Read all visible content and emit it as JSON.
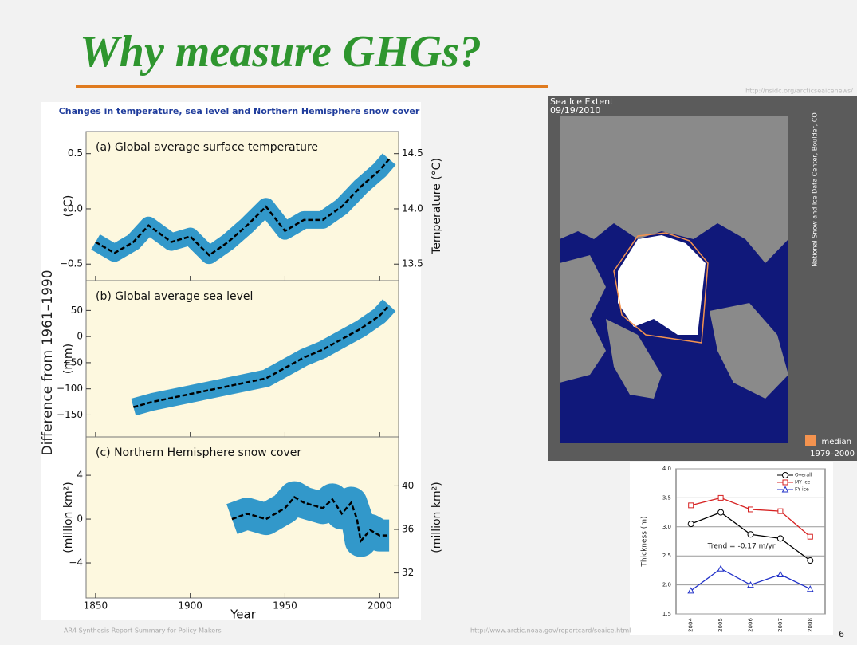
{
  "title": "Why measure GHGs?",
  "sources": {
    "left": "AR4 Synthesis Report Summary for Policy Makers",
    "middle": "http://www.arctic.noaa.gov/reportcard/seaice.html",
    "map": "http://nsidc.org/arcticseaicenews/"
  },
  "page_number": 6,
  "ipcc_figure": {
    "title": "Changes in temperature, sea level and Northern Hemisphere snow cover",
    "shared_y_label": "Difference from 1961–1990"
  },
  "map": {
    "title": "Sea Ice Extent",
    "date": "09/19/2010",
    "credit": "National Snow and Ice Data Center, Boulder, CO",
    "legend": "median",
    "legend_period": "1979–2000",
    "legend_color": "#f4934f"
  },
  "chart_data": [
    {
      "type": "line",
      "label": "(a) Global average surface temperature",
      "x": [
        1850,
        1860,
        1870,
        1878,
        1890,
        1900,
        1910,
        1920,
        1930,
        1940,
        1950,
        1960,
        1970,
        1980,
        1990,
        2000,
        2005
      ],
      "values": [
        -0.3,
        -0.4,
        -0.3,
        -0.15,
        -0.3,
        -0.25,
        -0.42,
        -0.3,
        -0.15,
        0.02,
        -0.2,
        -0.1,
        -0.1,
        0.02,
        0.2,
        0.35,
        0.45
      ],
      "color": "#000000",
      "band_color": "#1c8dc8",
      "xlim": [
        1845,
        2010
      ],
      "ylim": [
        -0.65,
        0.7
      ],
      "yticks": [
        {
          "value": -0.5,
          "label": "−0.5"
        },
        {
          "value": 0,
          "label": "0.0"
        },
        0.5
      ],
      "y2lim": [
        13.35,
        14.7
      ],
      "y2ticks": [
        13.5,
        {
          "value": 14,
          "label": "14.0"
        },
        14.5
      ],
      "y_label": "(°C)",
      "y2_label": "Temperature (°C)"
    },
    {
      "type": "line",
      "label": "(b) Global average sea level",
      "x": [
        1870,
        1880,
        1900,
        1920,
        1940,
        1950,
        1960,
        1970,
        1980,
        1990,
        2000,
        2005
      ],
      "values": [
        -135,
        -125,
        -110,
        -95,
        -80,
        -60,
        -40,
        -25,
        -5,
        15,
        40,
        60
      ],
      "color": "#000000",
      "band_color": "#1c8dc8",
      "xlim": [
        1845,
        2010
      ],
      "ylim": [
        -192,
        107
      ],
      "yticks": [
        {
          "value": -150,
          "label": "−150"
        },
        {
          "value": -100,
          "label": "−100"
        },
        {
          "value": -50,
          "label": "−50"
        },
        0,
        50
      ],
      "y_label": "(mm)"
    },
    {
      "type": "line",
      "label": "(c) Northern Hemisphere snow cover",
      "x": [
        1922,
        1930,
        1940,
        1950,
        1955,
        1960,
        1970,
        1975,
        1980,
        1985,
        1988,
        1990,
        1995,
        2000,
        2005
      ],
      "values": [
        0,
        0.5,
        0,
        1,
        2,
        1.5,
        1,
        1.8,
        0.5,
        1.5,
        0,
        -2,
        -1,
        -1.5,
        -1.5
      ],
      "color": "#000000",
      "band_color": "#1c8dc8",
      "xlim": [
        1845,
        2010
      ],
      "xticks": [
        1850,
        1900,
        1950,
        2000
      ],
      "x_label": "Year",
      "ylim": [
        -7.2,
        7.5
      ],
      "yticks": [
        {
          "value": -4,
          "label": "−4"
        },
        0,
        4
      ],
      "y2lim": [
        29.7,
        44.5
      ],
      "y2ticks": [
        32,
        36,
        40
      ],
      "y_label": "(million km²)",
      "y2_label": "(million km²)"
    },
    {
      "type": "line",
      "categories": [
        "2004",
        "2005",
        "2006",
        "2007",
        "2008"
      ],
      "series": [
        {
          "name": "Overall",
          "color": "#000000",
          "marker": "circle",
          "values": [
            3.05,
            3.25,
            2.87,
            2.8,
            2.42
          ]
        },
        {
          "name": "MY ice",
          "color": "#d62020",
          "marker": "square",
          "values": [
            3.37,
            3.5,
            3.3,
            3.27,
            2.83
          ]
        },
        {
          "name": "FY ice",
          "color": "#2030c8",
          "marker": "triangle",
          "values": [
            1.9,
            2.28,
            2.0,
            2.18,
            1.93
          ]
        }
      ],
      "ylim": [
        1.5,
        4.0
      ],
      "yticks": [
        1.5,
        {
          "value": 2,
          "label": "2.0"
        },
        2.5,
        {
          "value": 3,
          "label": "3.0"
        },
        3.5,
        {
          "value": 4,
          "label": "4.0"
        }
      ],
      "grid": true,
      "y_label": "Thickness (m)",
      "annotation": "Trend = -0.17 m/yr"
    }
  ]
}
